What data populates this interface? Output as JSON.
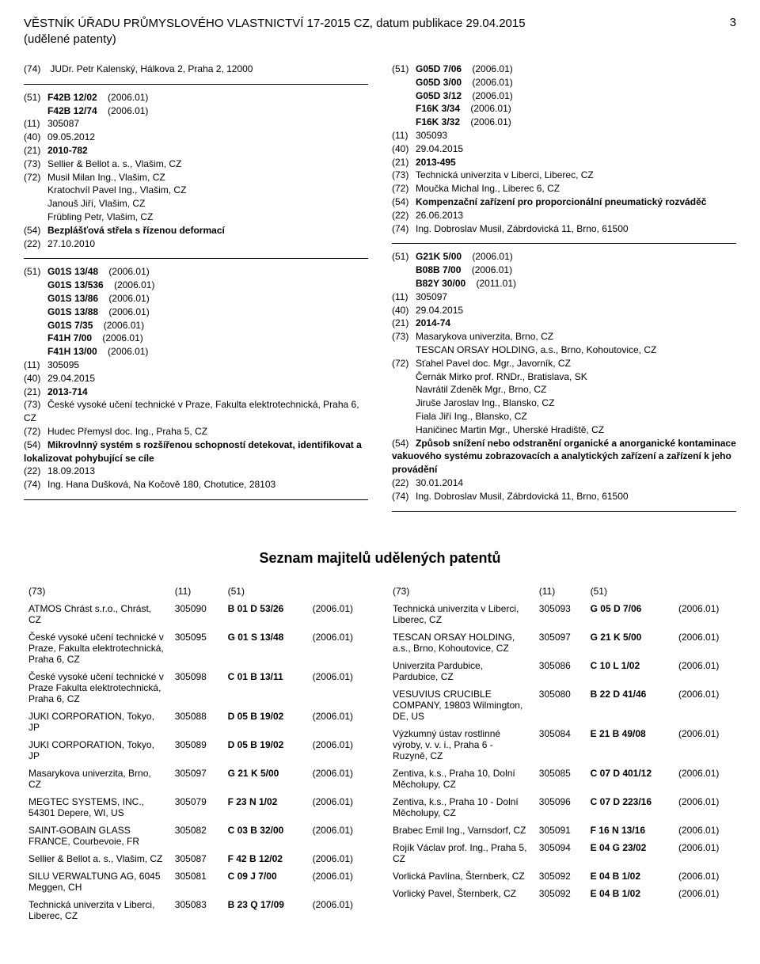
{
  "header": {
    "title_line1": "VĚSTNÍK ÚŘADU PRŮMYSLOVÉHO VLASTNICTVÍ 17-2015 CZ, datum publikace 29.04.2015",
    "title_line2": "(udělené patenty)",
    "page": "3"
  },
  "left_col": {
    "top_inventor": {
      "c74": "(74)",
      "v74": "JUDr. Petr Kalenský, Hálkova 2, Praha 2, 12000"
    },
    "entry1": [
      {
        "code": "(51)",
        "label": "F42B 12/02",
        "year": "(2006.01)",
        "bold": true
      },
      {
        "code": "",
        "label": "F42B 12/74",
        "year": "(2006.01)",
        "bold": true
      },
      {
        "code": "(11)",
        "label": "305087"
      },
      {
        "code": "(40)",
        "label": "09.05.2012"
      },
      {
        "code": "(21)",
        "label": "2010-782",
        "bold": true
      },
      {
        "code": "(73)",
        "label": "Sellier & Bellot a. s., Vlašim, CZ"
      },
      {
        "code": "(72)",
        "label": "Musil Milan Ing., Vlašim, CZ"
      },
      {
        "code": "",
        "label": "Kratochvíl Pavel Ing., Vlašim, CZ"
      },
      {
        "code": "",
        "label": "Janouš Jiří, Vlašim, CZ"
      },
      {
        "code": "",
        "label": "Frübling Petr, Vlašim, CZ"
      },
      {
        "code": "(54)",
        "label": "Bezplášťová střela s řízenou deformací",
        "bold": true
      },
      {
        "code": "(22)",
        "label": "27.10.2010"
      }
    ],
    "entry2": [
      {
        "code": "(51)",
        "label": "G01S 13/48",
        "year": "(2006.01)",
        "bold": true
      },
      {
        "code": "",
        "label": "G01S 13/536",
        "year": "(2006.01)",
        "bold": true
      },
      {
        "code": "",
        "label": "G01S 13/86",
        "year": "(2006.01)",
        "bold": true
      },
      {
        "code": "",
        "label": "G01S 13/88",
        "year": "(2006.01)",
        "bold": true
      },
      {
        "code": "",
        "label": "G01S 7/35",
        "year": "(2006.01)",
        "bold": true
      },
      {
        "code": "",
        "label": "F41H 7/00",
        "year": "(2006.01)",
        "bold": true
      },
      {
        "code": "",
        "label": "F41H 13/00",
        "year": "(2006.01)",
        "bold": true
      },
      {
        "code": "(11)",
        "label": "305095"
      },
      {
        "code": "(40)",
        "label": "29.04.2015"
      },
      {
        "code": "(21)",
        "label": "2013-714",
        "bold": true
      },
      {
        "code": "(73)",
        "label": "České vysoké učení technické v Praze, Fakulta elektrotechnická, Praha 6, CZ"
      },
      {
        "code": "(72)",
        "label": "Hudec Přemysl doc. Ing., Praha 5, CZ"
      },
      {
        "code": "(54)",
        "label": "Mikrovlnný systém s rozšířenou schopností detekovat, identifikovat a lokalizovat pohybující se cíle",
        "bold": true
      },
      {
        "code": "(22)",
        "label": "18.09.2013"
      },
      {
        "code": "(74)",
        "label": "Ing. Hana Dušková, Na Kočově 180, Chotutice, 28103"
      }
    ]
  },
  "right_col": {
    "entry1": [
      {
        "code": "(51)",
        "label": "G05D 7/06",
        "year": "(2006.01)",
        "bold": true
      },
      {
        "code": "",
        "label": "G05D 3/00",
        "year": "(2006.01)",
        "bold": true
      },
      {
        "code": "",
        "label": "G05D 3/12",
        "year": "(2006.01)",
        "bold": true
      },
      {
        "code": "",
        "label": "F16K 3/34",
        "year": "(2006.01)",
        "bold": true
      },
      {
        "code": "",
        "label": "F16K 3/32",
        "year": "(2006.01)",
        "bold": true
      },
      {
        "code": "(11)",
        "label": "305093"
      },
      {
        "code": "(40)",
        "label": "29.04.2015"
      },
      {
        "code": "(21)",
        "label": "2013-495",
        "bold": true
      },
      {
        "code": "(73)",
        "label": "Technická univerzita v Liberci, Liberec, CZ"
      },
      {
        "code": "(72)",
        "label": "Moučka Michal Ing., Liberec 6, CZ"
      },
      {
        "code": "(54)",
        "label": "Kompenzační zařízení pro proporcionální pneumatický rozváděč",
        "bold": true
      },
      {
        "code": "(22)",
        "label": "26.06.2013"
      },
      {
        "code": "(74)",
        "label": "Ing. Dobroslav Musil, Zábrdovická 11, Brno, 61500"
      }
    ],
    "entry2": [
      {
        "code": "(51)",
        "label": "G21K 5/00",
        "year": "(2006.01)",
        "bold": true
      },
      {
        "code": "",
        "label": "B08B 7/00",
        "year": "(2006.01)",
        "bold": true
      },
      {
        "code": "",
        "label": "B82Y 30/00",
        "year": "(2011.01)",
        "bold": true
      },
      {
        "code": "(11)",
        "label": "305097"
      },
      {
        "code": "(40)",
        "label": "29.04.2015"
      },
      {
        "code": "(21)",
        "label": "2014-74",
        "bold": true
      },
      {
        "code": "(73)",
        "label": "Masarykova univerzita, Brno, CZ"
      },
      {
        "code": "",
        "label": "TESCAN ORSAY HOLDING, a.s., Brno, Kohoutovice, CZ"
      },
      {
        "code": "(72)",
        "label": "Sťahel Pavel doc. Mgr., Javorník, CZ"
      },
      {
        "code": "",
        "label": "Černák Mirko prof. RNDr., Bratislava, SK"
      },
      {
        "code": "",
        "label": "Navrátil Zdeněk Mgr., Brno, CZ"
      },
      {
        "code": "",
        "label": "Jiruše Jaroslav Ing., Blansko, CZ"
      },
      {
        "code": "",
        "label": "Fiala Jiří Ing., Blansko, CZ"
      },
      {
        "code": "",
        "label": "Haničinec Martin Mgr., Uherské Hradiště, CZ"
      },
      {
        "code": "(54)",
        "label": "Způsob snížení nebo odstranění organické a anorganické kontaminace vakuového systému zobrazovacích a analytických zařízení a zařízení k jeho provádění",
        "bold": true
      },
      {
        "code": "(22)",
        "label": "30.01.2014"
      },
      {
        "code": "(74)",
        "label": "Ing. Dobroslav Musil, Zábrdovická 11, Brno, 61500"
      }
    ]
  },
  "owners_title": "Seznam majitelů udělených patentů",
  "owners_headers": {
    "c73": "(73)",
    "c11": "(11)",
    "c51": "(51)"
  },
  "owners_left": [
    {
      "name": "ATMOS Chrást s.r.o., Chrást, CZ",
      "num": "305090",
      "cls": "B 01 D 53/26",
      "year": "(2006.01)"
    },
    {
      "name": "České vysoké učení technické v Praze, Fakulta elektrotechnická, Praha 6, CZ",
      "num": "305095",
      "cls": "G 01 S 13/48",
      "year": "(2006.01)"
    },
    {
      "name": "České vysoké učení technické v Praze Fakulta elektrotechnická, Praha 6, CZ",
      "num": "305098",
      "cls": "C 01 B 13/11",
      "year": "(2006.01)"
    },
    {
      "name": "JUKI CORPORATION, Tokyo, JP",
      "num": "305088",
      "cls": "D 05 B 19/02",
      "year": "(2006.01)"
    },
    {
      "name": "JUKI CORPORATION, Tokyo, JP",
      "num": "305089",
      "cls": "D 05 B 19/02",
      "year": "(2006.01)"
    },
    {
      "name": "Masarykova univerzita, Brno, CZ",
      "num": "305097",
      "cls": "G 21 K 5/00",
      "year": "(2006.01)"
    },
    {
      "name": "MEGTEC SYSTEMS, INC., 54301 Depere, WI, US",
      "num": "305079",
      "cls": "F 23 N 1/02",
      "year": "(2006.01)"
    },
    {
      "name": "SAINT-GOBAIN GLASS FRANCE, Courbevoie, FR",
      "num": "305082",
      "cls": "C 03 B 32/00",
      "year": "(2006.01)"
    },
    {
      "name": "Sellier & Bellot a. s., Vlašim, CZ",
      "num": "305087",
      "cls": "F 42 B 12/02",
      "year": "(2006.01)"
    },
    {
      "name": "SILU VERWALTUNG AG, 6045 Meggen, CH",
      "num": "305081",
      "cls": "C 09 J 7/00",
      "year": "(2006.01)"
    },
    {
      "name": "Technická univerzita v Liberci, Liberec, CZ",
      "num": "305083",
      "cls": "B 23 Q 17/09",
      "year": "(2006.01)"
    }
  ],
  "owners_right": [
    {
      "name": "Technická univerzita v Liberci, Liberec, CZ",
      "num": "305093",
      "cls": "G 05 D 7/06",
      "year": "(2006.01)"
    },
    {
      "name": "TESCAN ORSAY HOLDING, a.s., Brno, Kohoutovice, CZ",
      "num": "305097",
      "cls": "G 21 K 5/00",
      "year": "(2006.01)"
    },
    {
      "name": "Univerzita Pardubice, Pardubice, CZ",
      "num": "305086",
      "cls": "C 10 L 1/02",
      "year": "(2006.01)"
    },
    {
      "name": "VESUVIUS CRUCIBLE COMPANY, 19803 Wilmington, DE, US",
      "num": "305080",
      "cls": "B 22 D 41/46",
      "year": "(2006.01)"
    },
    {
      "name": "Výzkumný ústav rostlinné výroby, v. v. i., Praha 6 - Ruzyně, CZ",
      "num": "305084",
      "cls": "E 21 B 49/08",
      "year": "(2006.01)"
    },
    {
      "name": "Zentiva, k.s., Praha 10, Dolní Měcholupy, CZ",
      "num": "305085",
      "cls": "C 07 D 401/12",
      "year": "(2006.01)"
    },
    {
      "name": "Zentiva, k.s., Praha 10 - Dolní Měcholupy, CZ",
      "num": "305096",
      "cls": "C 07 D 223/16",
      "year": "(2006.01)"
    },
    {
      "name": "Brabec Emil Ing., Varnsdorf, CZ",
      "num": "305091",
      "cls": "F 16 N 13/16",
      "year": "(2006.01)"
    },
    {
      "name": "Rojík Václav prof. Ing., Praha 5, CZ",
      "num": "305094",
      "cls": "E 04 G 23/02",
      "year": "(2006.01)"
    },
    {
      "name": "Vorlická Pavlína, Šternberk, CZ",
      "num": "305092",
      "cls": "E 04 B 1/02",
      "year": "(2006.01)"
    },
    {
      "name": "Vorlický Pavel, Šternberk, CZ",
      "num": "305092",
      "cls": "E 04 B 1/02",
      "year": "(2006.01)"
    }
  ]
}
